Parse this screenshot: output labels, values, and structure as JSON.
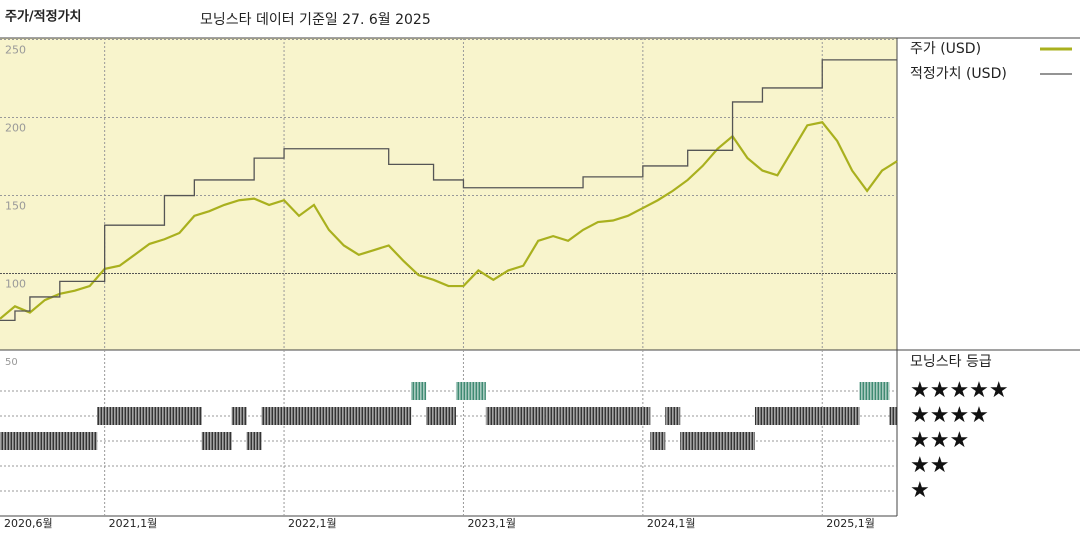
{
  "chart_data": {
    "type": "line",
    "title": "주가/적정가치",
    "subtitle": "모닝스타 데이터 기준일 27. 6월 2025",
    "x": [
      "2020-06",
      "2020-07",
      "2020-08",
      "2020-09",
      "2020-10",
      "2020-11",
      "2020-12",
      "2021-01",
      "2021-02",
      "2021-03",
      "2021-04",
      "2021-05",
      "2021-06",
      "2021-07",
      "2021-08",
      "2021-09",
      "2021-10",
      "2021-11",
      "2021-12",
      "2022-01",
      "2022-02",
      "2022-03",
      "2022-04",
      "2022-05",
      "2022-06",
      "2022-07",
      "2022-08",
      "2022-09",
      "2022-10",
      "2022-11",
      "2022-12",
      "2023-01",
      "2023-02",
      "2023-03",
      "2023-04",
      "2023-05",
      "2023-06",
      "2023-07",
      "2023-08",
      "2023-09",
      "2023-10",
      "2023-11",
      "2023-12",
      "2024-01",
      "2024-02",
      "2024-03",
      "2024-04",
      "2024-05",
      "2024-06",
      "2024-07",
      "2024-08",
      "2024-09",
      "2024-10",
      "2024-11",
      "2024-12",
      "2025-01",
      "2025-02",
      "2025-03",
      "2025-04",
      "2025-05",
      "2025-06"
    ],
    "xticks": [
      {
        "value": "2020-06",
        "label": "2020,6월"
      },
      {
        "value": "2021-01",
        "label": "2021,1월"
      },
      {
        "value": "2022-01",
        "label": "2022,1월"
      },
      {
        "value": "2023-01",
        "label": "2023,1월"
      },
      {
        "value": "2024-01",
        "label": "2024,1월"
      },
      {
        "value": "2025-01",
        "label": "2025,1월"
      }
    ],
    "series": [
      {
        "name": "주가 (USD)",
        "color": "#a9b01e",
        "step": false,
        "values": [
          71,
          79,
          75,
          83,
          87,
          89,
          92,
          103,
          105,
          112,
          119,
          122,
          126,
          137,
          140,
          144,
          147,
          148,
          144,
          147,
          137,
          144,
          128,
          118,
          112,
          115,
          118,
          108,
          99,
          96,
          92,
          92,
          102,
          96,
          102,
          105,
          121,
          124,
          121,
          128,
          133,
          134,
          137,
          142,
          147,
          153,
          160,
          169,
          180,
          188,
          174,
          166,
          163,
          179,
          195,
          197,
          185,
          166,
          153,
          166,
          172
        ]
      },
      {
        "name": "적정가치 (USD)",
        "color": "#555555",
        "step": true,
        "values": [
          70,
          76,
          85,
          85,
          95,
          95,
          95,
          131,
          131,
          131,
          131,
          150,
          150,
          160,
          160,
          160,
          160,
          174,
          174,
          180,
          180,
          180,
          180,
          180,
          180,
          180,
          170,
          170,
          170,
          160,
          160,
          155,
          155,
          155,
          155,
          155,
          155,
          155,
          155,
          162,
          162,
          162,
          162,
          169,
          169,
          169,
          179,
          179,
          179,
          210,
          210,
          219,
          219,
          219,
          219,
          237,
          237,
          237,
          237,
          237,
          237
        ]
      }
    ],
    "ylim": [
      51,
      251
    ],
    "yticks": [
      100,
      150,
      200,
      250
    ],
    "grid": true,
    "rating_title": "모닝스타 등급",
    "rating_panel_tick": "50",
    "rating_levels": [
      {
        "value": 5,
        "label": "★★★★★"
      },
      {
        "value": 4,
        "label": "★★★★"
      },
      {
        "value": 3,
        "label": "★★★"
      },
      {
        "value": 2,
        "label": "★★"
      },
      {
        "value": 1,
        "label": "★"
      }
    ],
    "rating_colors": {
      "5": "#3e8a72",
      "4": "#333333",
      "3": "#333333"
    },
    "ratings": [
      3,
      3,
      3,
      3,
      3,
      3,
      3,
      4,
      4,
      4,
      4,
      4,
      4,
      4,
      3,
      3,
      4,
      3,
      4,
      4,
      4,
      4,
      4,
      4,
      4,
      4,
      4,
      4,
      5,
      4,
      4,
      5,
      5,
      4,
      4,
      4,
      4,
      4,
      4,
      4,
      4,
      4,
      4,
      4,
      3,
      4,
      3,
      3,
      3,
      3,
      3,
      4,
      4,
      4,
      4,
      4,
      4,
      4,
      5,
      5,
      4
    ]
  }
}
